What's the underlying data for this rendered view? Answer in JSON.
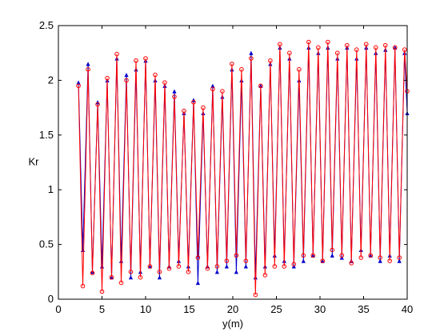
{
  "chart_data": {
    "type": "line",
    "title": "",
    "xlabel": "y(m)",
    "ylabel": "Kr",
    "xlim": [
      0,
      40
    ],
    "ylim": [
      0,
      2.5
    ],
    "xticks": [
      0,
      5,
      10,
      15,
      20,
      25,
      30,
      35,
      40
    ],
    "yticks": [
      0,
      0.5,
      1,
      1.5,
      2,
      2.5
    ],
    "xtick_labels": [
      "0",
      "5",
      "10",
      "15",
      "20",
      "25",
      "30",
      "35",
      "40"
    ],
    "ytick_labels": [
      "0",
      "0.5",
      "1",
      "1.5",
      "2",
      "2.5"
    ],
    "grid": false,
    "series": [
      {
        "color": "#0000cc",
        "marker": "triangle",
        "x": [
          2.3,
          2.8,
          3.4,
          3.9,
          4.5,
          5.0,
          5.6,
          6.1,
          6.7,
          7.2,
          7.8,
          8.3,
          8.9,
          9.4,
          10.0,
          10.5,
          11.1,
          11.6,
          12.2,
          12.7,
          13.3,
          13.8,
          14.4,
          14.9,
          15.5,
          16.0,
          16.6,
          17.1,
          17.7,
          18.2,
          18.8,
          19.3,
          19.9,
          20.4,
          21.0,
          21.5,
          22.1,
          22.6,
          23.2,
          23.7,
          24.3,
          24.8,
          25.4,
          25.9,
          26.5,
          27.0,
          27.6,
          28.1,
          28.7,
          29.2,
          29.8,
          30.3,
          30.9,
          31.4,
          32.0,
          32.5,
          33.1,
          33.6,
          34.2,
          34.7,
          35.3,
          35.8,
          36.4,
          36.9,
          37.5,
          38.0,
          38.6,
          39.1,
          39.7,
          40.0
        ],
        "y": [
          1.98,
          0.45,
          2.15,
          0.25,
          1.8,
          0.3,
          2.0,
          0.2,
          2.2,
          0.35,
          2.05,
          0.2,
          2.1,
          0.25,
          2.18,
          0.3,
          2.0,
          0.2,
          1.95,
          0.3,
          1.9,
          0.35,
          1.7,
          0.3,
          1.82,
          0.15,
          1.7,
          0.3,
          1.95,
          0.25,
          1.85,
          0.3,
          2.1,
          0.25,
          2.0,
          0.3,
          2.25,
          0.2,
          1.95,
          0.3,
          2.15,
          0.4,
          2.3,
          0.35,
          2.2,
          0.3,
          2.0,
          0.35,
          2.3,
          0.4,
          2.25,
          0.35,
          2.3,
          0.4,
          2.2,
          0.38,
          2.3,
          0.35,
          2.2,
          0.45,
          2.3,
          0.4,
          2.25,
          0.35,
          2.28,
          0.4,
          2.3,
          0.35,
          2.25,
          1.7
        ]
      },
      {
        "color": "#ff0000",
        "marker": "circle",
        "x": [
          2.3,
          2.8,
          3.4,
          3.9,
          4.5,
          5.0,
          5.6,
          6.1,
          6.7,
          7.2,
          7.8,
          8.3,
          8.9,
          9.4,
          10.0,
          10.5,
          11.1,
          11.6,
          12.2,
          12.7,
          13.3,
          13.8,
          14.4,
          14.9,
          15.5,
          16.0,
          16.6,
          17.1,
          17.7,
          18.2,
          18.8,
          19.3,
          19.9,
          20.4,
          21.0,
          21.5,
          22.1,
          22.6,
          23.2,
          23.7,
          24.3,
          24.8,
          25.4,
          25.9,
          26.5,
          27.0,
          27.6,
          28.1,
          28.7,
          29.2,
          29.8,
          30.3,
          30.9,
          31.4,
          32.0,
          32.5,
          33.1,
          33.6,
          34.2,
          34.7,
          35.3,
          35.8,
          36.4,
          36.9,
          37.5,
          38.0,
          38.6,
          39.1,
          39.7,
          40.0
        ],
        "y": [
          1.95,
          0.12,
          2.1,
          0.24,
          1.78,
          0.07,
          2.02,
          0.2,
          2.24,
          0.15,
          2.0,
          0.25,
          2.18,
          0.2,
          2.2,
          0.3,
          2.05,
          0.25,
          1.98,
          0.28,
          1.85,
          0.3,
          1.72,
          0.25,
          1.8,
          0.38,
          1.75,
          0.28,
          1.92,
          0.3,
          1.9,
          0.35,
          2.15,
          0.4,
          2.1,
          0.35,
          2.2,
          0.04,
          1.95,
          0.22,
          2.18,
          0.3,
          2.33,
          0.3,
          2.25,
          0.32,
          2.1,
          0.4,
          2.35,
          0.4,
          2.3,
          0.35,
          2.35,
          0.45,
          2.25,
          0.4,
          2.32,
          0.33,
          2.28,
          0.38,
          2.33,
          0.4,
          2.3,
          0.38,
          2.32,
          0.35,
          2.3,
          0.38,
          2.28,
          1.9
        ]
      }
    ]
  }
}
